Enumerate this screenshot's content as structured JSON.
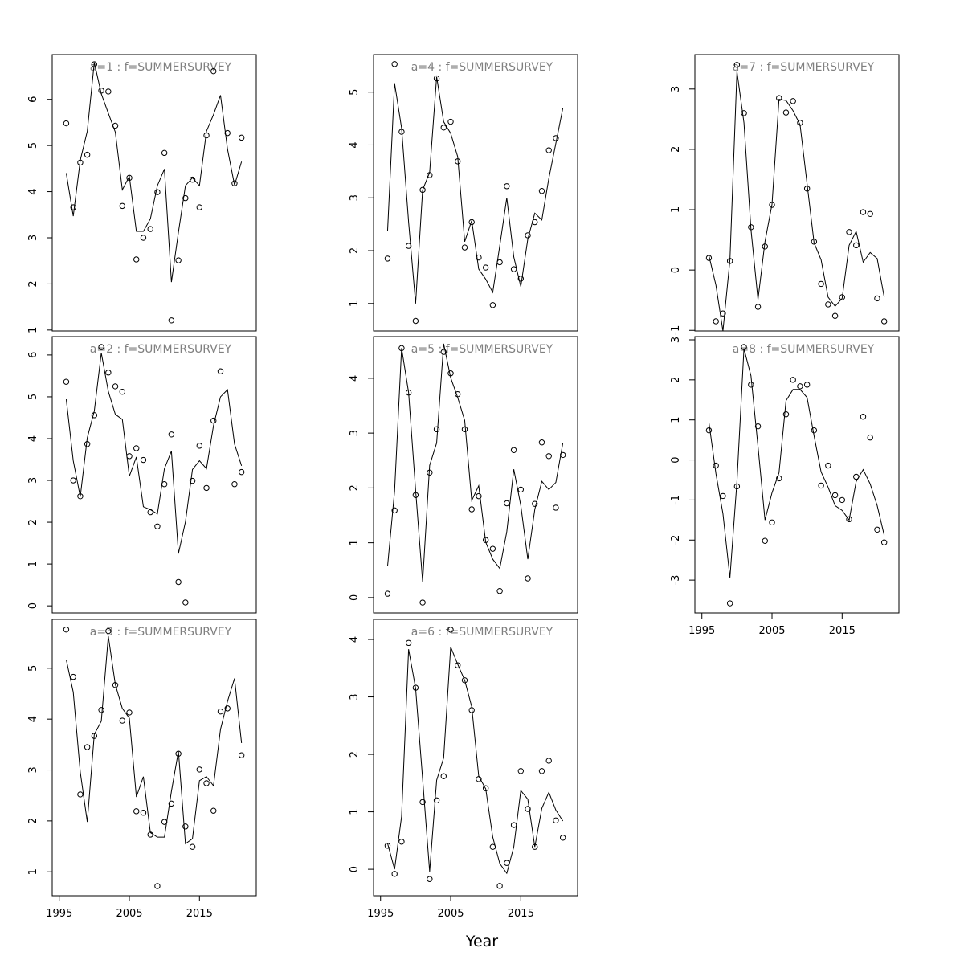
{
  "chart_data": [
    {
      "type": "line",
      "title": "a=1 : f=SUMMERSURVEY",
      "x": [
        1996,
        1997,
        1998,
        1999,
        2000,
        2001,
        2002,
        2003,
        2004,
        2005,
        2006,
        2007,
        2008,
        2009,
        2010,
        2011,
        2012,
        2013,
        2014,
        2015,
        2016,
        2017,
        2018,
        2019,
        2020,
        2021
      ],
      "observed": [
        5.48,
        3.66,
        4.63,
        4.8,
        6.76,
        6.19,
        6.17,
        5.43,
        3.69,
        4.3,
        2.53,
        3.0,
        3.19,
        3.99,
        4.84,
        1.21,
        2.51,
        3.86,
        4.26,
        3.66,
        5.22,
        6.61,
        null,
        5.27,
        4.18,
        5.17
      ],
      "fitted": [
        4.4,
        3.47,
        4.68,
        5.31,
        6.8,
        6.12,
        5.7,
        5.29,
        4.04,
        4.33,
        3.14,
        3.14,
        3.41,
        4.13,
        4.49,
        2.04,
        3.12,
        4.13,
        4.3,
        4.13,
        5.31,
        5.67,
        6.09,
        4.92,
        4.14,
        4.65
      ],
      "xlim": [
        1994,
        2023.1
      ],
      "ylim": [
        0.98,
        6.97
      ],
      "yticks": [
        1,
        2,
        3,
        4,
        5,
        6
      ]
    },
    {
      "type": "line",
      "title": "a=2 : f=SUMMERSURVEY",
      "x": [
        1996,
        1997,
        1998,
        1999,
        2000,
        2001,
        2002,
        2003,
        2004,
        2005,
        2006,
        2007,
        2008,
        2009,
        2010,
        2011,
        2012,
        2013,
        2014,
        2015,
        2016,
        2017,
        2018,
        2019,
        2020,
        2021
      ],
      "observed": [
        5.36,
        3.0,
        2.62,
        3.87,
        4.56,
        6.19,
        5.58,
        5.25,
        5.12,
        3.58,
        3.77,
        3.49,
        2.24,
        1.9,
        2.91,
        4.1,
        0.57,
        0.08,
        2.99,
        3.83,
        2.82,
        4.43,
        5.61,
        null,
        2.91,
        3.2
      ],
      "fitted": [
        4.94,
        3.47,
        2.61,
        4.02,
        4.66,
        6.05,
        5.13,
        4.58,
        4.46,
        3.1,
        3.56,
        2.37,
        2.3,
        2.2,
        3.28,
        3.7,
        1.25,
        2.01,
        3.26,
        3.47,
        3.28,
        4.31,
        5.0,
        5.17,
        3.87,
        3.35
      ],
      "xlim": [
        1994,
        2023.1
      ],
      "ylim": [
        -0.17,
        6.44
      ],
      "yticks": [
        0,
        1,
        2,
        3,
        4,
        5,
        6
      ]
    },
    {
      "type": "line",
      "title": "a=3 : f=SUMMERSURVEY",
      "x": [
        1996,
        1997,
        1998,
        1999,
        2000,
        2001,
        2002,
        2003,
        2004,
        2005,
        2006,
        2007,
        2008,
        2009,
        2010,
        2011,
        2012,
        2013,
        2014,
        2015,
        2016,
        2017,
        2018,
        2019,
        2020,
        2021
      ],
      "observed": [
        5.76,
        4.83,
        2.52,
        3.45,
        3.67,
        4.18,
        5.73,
        4.67,
        3.97,
        4.13,
        2.19,
        2.16,
        1.73,
        0.72,
        1.98,
        2.34,
        3.32,
        1.89,
        1.49,
        3.01,
        2.74,
        2.2,
        4.15,
        4.21,
        null,
        3.29
      ],
      "fitted": [
        5.17,
        4.53,
        2.96,
        1.98,
        3.7,
        3.96,
        5.63,
        4.68,
        4.21,
        4.02,
        2.47,
        2.87,
        1.77,
        1.68,
        1.68,
        2.58,
        3.37,
        1.55,
        1.65,
        2.79,
        2.87,
        2.69,
        3.8,
        4.35,
        4.8,
        3.53
      ],
      "xlim": [
        1994,
        2023.1
      ],
      "ylim": [
        0.53,
        5.96
      ],
      "yticks": [
        1,
        2,
        3,
        4,
        5
      ],
      "xticks": [
        1995,
        2005,
        2015
      ]
    },
    {
      "type": "line",
      "title": "a=4 : f=SUMMERSURVEY",
      "x": [
        1996,
        1997,
        1998,
        1999,
        2000,
        2001,
        2002,
        2003,
        2004,
        2005,
        2006,
        2007,
        2008,
        2009,
        2010,
        2011,
        2012,
        2013,
        2014,
        2015,
        2016,
        2017,
        2018,
        2019,
        2020,
        2021
      ],
      "observed": [
        1.85,
        5.53,
        4.25,
        2.09,
        0.67,
        3.15,
        3.43,
        5.26,
        4.33,
        4.44,
        3.69,
        2.06,
        2.54,
        1.87,
        1.68,
        0.97,
        1.78,
        3.22,
        1.65,
        1.47,
        2.29,
        2.54,
        3.13,
        3.9,
        4.13,
        null
      ],
      "fitted": [
        2.37,
        5.17,
        4.32,
        2.54,
        1.0,
        3.15,
        3.48,
        5.29,
        4.44,
        4.22,
        3.78,
        2.17,
        2.57,
        1.65,
        1.46,
        1.21,
        2.09,
        3.0,
        1.88,
        1.32,
        2.22,
        2.71,
        2.58,
        3.37,
        4.03,
        4.7
      ],
      "xlim": [
        1994,
        2023.1
      ],
      "ylim": [
        0.48,
        5.71
      ],
      "yticks": [
        1,
        2,
        3,
        4,
        5
      ]
    },
    {
      "type": "line",
      "title": "a=5 : f=SUMMERSURVEY",
      "x": [
        1996,
        1997,
        1998,
        1999,
        2000,
        2001,
        2002,
        2003,
        2004,
        2005,
        2006,
        2007,
        2008,
        2009,
        2010,
        2011,
        2012,
        2013,
        2014,
        2015,
        2016,
        2017,
        2018,
        2019,
        2020,
        2021
      ],
      "observed": [
        0.07,
        1.59,
        4.55,
        3.74,
        1.87,
        -0.09,
        2.28,
        3.07,
        4.48,
        4.09,
        3.71,
        3.07,
        1.61,
        1.85,
        1.05,
        0.89,
        0.12,
        1.72,
        2.69,
        1.97,
        0.35,
        1.71,
        2.83,
        2.58,
        1.64,
        2.6
      ],
      "fitted": [
        0.57,
        1.94,
        4.55,
        3.74,
        1.96,
        0.29,
        2.41,
        2.82,
        4.63,
        4.01,
        3.65,
        3.23,
        1.77,
        2.04,
        1.01,
        0.7,
        0.53,
        1.2,
        2.34,
        1.68,
        0.7,
        1.61,
        2.12,
        1.97,
        2.1,
        2.82
      ],
      "xlim": [
        1994,
        2023.1
      ],
      "ylim": [
        -0.28,
        4.76
      ],
      "yticks": [
        0,
        1,
        2,
        3,
        4
      ]
    },
    {
      "type": "line",
      "title": "a=6 : f=SUMMERSURVEY",
      "xlabel": "Year",
      "x": [
        1996,
        1997,
        1998,
        1999,
        2000,
        2001,
        2002,
        2003,
        2004,
        2005,
        2006,
        2007,
        2008,
        2009,
        2010,
        2011,
        2012,
        2013,
        2014,
        2015,
        2016,
        2017,
        2018,
        2019,
        2020,
        2021
      ],
      "observed": [
        0.41,
        -0.08,
        0.48,
        3.94,
        3.16,
        1.17,
        -0.17,
        1.2,
        1.62,
        4.17,
        3.55,
        3.29,
        2.77,
        1.57,
        1.41,
        0.39,
        -0.29,
        0.11,
        0.77,
        1.71,
        1.05,
        0.39,
        1.71,
        1.89,
        0.85,
        0.55
      ],
      "fitted": [
        0.45,
        0.0,
        0.92,
        3.83,
        3.15,
        1.57,
        -0.04,
        1.55,
        1.94,
        3.87,
        3.57,
        3.29,
        2.83,
        1.62,
        1.4,
        0.56,
        0.1,
        -0.07,
        0.39,
        1.37,
        1.22,
        0.39,
        1.06,
        1.34,
        1.03,
        0.84
      ],
      "xlim": [
        1994,
        2023.1
      ],
      "ylim": [
        -0.46,
        4.35
      ],
      "yticks": [
        0,
        1,
        2,
        3,
        4
      ],
      "xticks": [
        1995,
        2005,
        2015
      ]
    },
    {
      "type": "line",
      "title": "a=7 : f=SUMMERSURVEY",
      "x": [
        1996,
        1997,
        1998,
        1999,
        2000,
        2001,
        2002,
        2003,
        2004,
        2005,
        2006,
        2007,
        2008,
        2009,
        2010,
        2011,
        2012,
        2013,
        2014,
        2015,
        2016,
        2017,
        2018,
        2019,
        2020,
        2021
      ],
      "observed": [
        0.2,
        -0.85,
        -0.72,
        0.15,
        3.4,
        2.6,
        0.71,
        -0.61,
        0.39,
        1.08,
        2.85,
        2.61,
        2.8,
        2.44,
        1.35,
        0.47,
        -0.23,
        -0.57,
        -0.76,
        -0.45,
        0.63,
        0.41,
        0.96,
        0.93,
        -0.47,
        -0.85
      ],
      "fitted": [
        0.24,
        -0.25,
        -1.01,
        0.17,
        3.29,
        2.44,
        0.67,
        -0.49,
        0.47,
        1.09,
        2.83,
        2.81,
        2.64,
        2.41,
        1.43,
        0.45,
        0.17,
        -0.45,
        -0.6,
        -0.47,
        0.41,
        0.64,
        0.13,
        0.29,
        0.19,
        -0.45
      ],
      "xlim": [
        1994,
        2023.1
      ],
      "ylim": [
        -1.01,
        3.57
      ],
      "yticks": [
        -1,
        0,
        1,
        2,
        3
      ]
    },
    {
      "type": "line",
      "title": "a=8 : f=SUMMERSURVEY",
      "x": [
        1996,
        1997,
        1998,
        1999,
        2000,
        2001,
        2002,
        2003,
        2004,
        2005,
        2006,
        2007,
        2008,
        2009,
        2010,
        2011,
        2012,
        2013,
        2014,
        2015,
        2016,
        2017,
        2018,
        2019,
        2020,
        2021
      ],
      "observed": [
        0.74,
        -0.14,
        -0.9,
        -3.58,
        -0.66,
        2.82,
        1.88,
        0.84,
        -2.02,
        -1.56,
        -0.46,
        1.14,
        2.0,
        1.84,
        1.88,
        0.74,
        -0.64,
        -0.14,
        -0.88,
        -1.0,
        -1.48,
        -0.42,
        1.08,
        0.56,
        -1.74,
        -2.06
      ],
      "fitted": [
        0.94,
        -0.34,
        -1.34,
        -2.94,
        -0.54,
        2.78,
        2.1,
        0.34,
        -1.5,
        -0.82,
        -0.32,
        1.48,
        1.76,
        1.76,
        1.56,
        0.6,
        -0.3,
        -0.68,
        -1.14,
        -1.26,
        -1.5,
        -0.54,
        -0.24,
        -0.6,
        -1.14,
        -1.88
      ],
      "xlim": [
        1994,
        2023.1
      ],
      "ylim": [
        -3.82,
        3.08
      ],
      "yticks": [
        -3,
        -2,
        -1,
        0,
        1,
        2,
        3
      ],
      "xticks": [
        1995,
        2005,
        2015
      ]
    }
  ]
}
